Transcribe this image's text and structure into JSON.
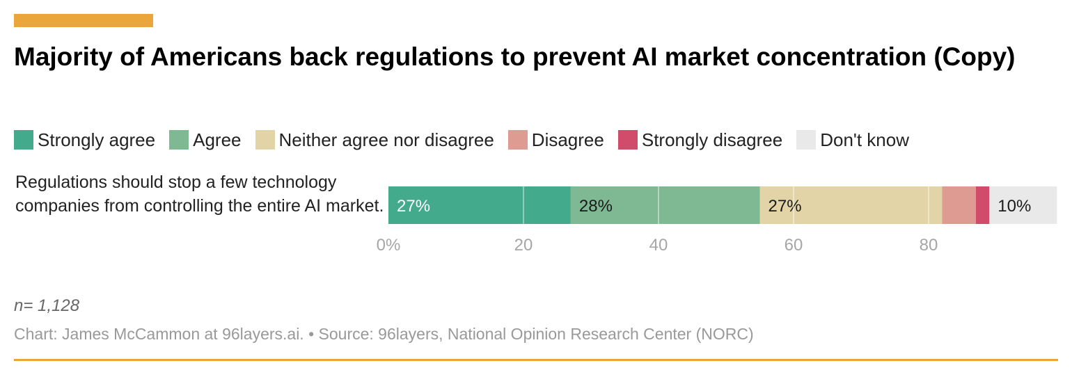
{
  "header": {
    "title": "Majority of Americans back regulations to prevent AI market concentration (Copy)",
    "accent_color": "#eaa63a"
  },
  "legend": [
    {
      "label": "Strongly agree",
      "color": "#43aa8b"
    },
    {
      "label": "Agree",
      "color": "#7fb993"
    },
    {
      "label": "Neither agree nor disagree",
      "color": "#e2d4a6"
    },
    {
      "label": "Disagree",
      "color": "#dd9b91"
    },
    {
      "label": "Strongly disagree",
      "color": "#d14b6b"
    },
    {
      "label": "Don't know",
      "color": "#e9e9e9"
    }
  ],
  "chart_data": {
    "type": "bar",
    "orientation": "horizontal",
    "stacked": true,
    "categories": [
      "Regulations should stop a few technology companies from controlling the entire AI market."
    ],
    "series": [
      {
        "name": "Strongly agree",
        "values": [
          27
        ],
        "label": "27%",
        "color": "#43aa8b",
        "label_color": "#ffffff"
      },
      {
        "name": "Agree",
        "values": [
          28
        ],
        "label": "28%",
        "color": "#7fb993",
        "label_color": "#1a1a1a"
      },
      {
        "name": "Neither agree nor disagree",
        "values": [
          27
        ],
        "label": "27%",
        "color": "#e2d4a6",
        "label_color": "#1a1a1a"
      },
      {
        "name": "Disagree",
        "values": [
          5
        ],
        "label": "",
        "color": "#dd9b91",
        "label_color": "#1a1a1a"
      },
      {
        "name": "Strongly disagree",
        "values": [
          2
        ],
        "label": "",
        "color": "#d14b6b",
        "label_color": "#1a1a1a"
      },
      {
        "name": "Don't know",
        "values": [
          10
        ],
        "label": "10%",
        "color": "#e9e9e9",
        "label_color": "#1a1a1a"
      }
    ],
    "x_ticks": [
      {
        "value": 0,
        "label": "0%"
      },
      {
        "value": 20,
        "label": "20"
      },
      {
        "value": 40,
        "label": "40"
      },
      {
        "value": 60,
        "label": "60"
      },
      {
        "value": 80,
        "label": "80"
      }
    ],
    "xlim": [
      0,
      99
    ],
    "grid": true,
    "legend_position": "top"
  },
  "footer": {
    "note": "n= 1,128",
    "credit": "Chart: James McCammon at 96layers.ai. • Source: 96layers, National Opinion Research Center (NORC)"
  }
}
